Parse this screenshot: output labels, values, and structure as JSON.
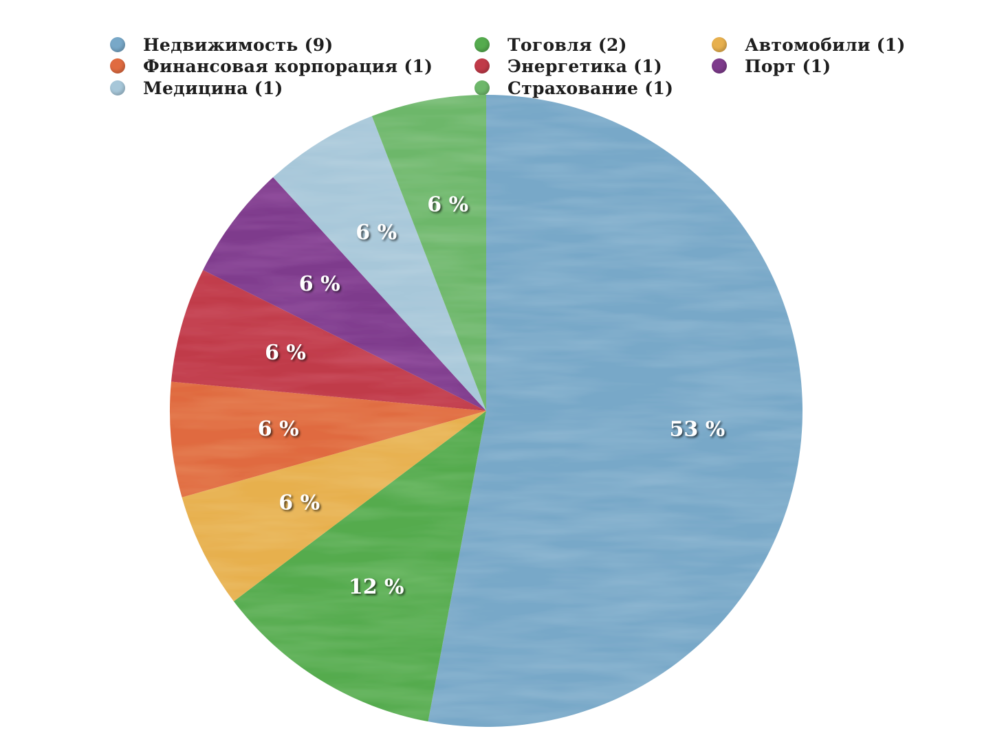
{
  "chart_data": {
    "type": "pie",
    "title": "",
    "start": "top",
    "direction": "clockwise",
    "legend_position": "top",
    "slices": [
      {
        "label": "Недвижимость (9)",
        "value": 9,
        "percent_label": "53 %",
        "color": "#78a8c8"
      },
      {
        "label": "Тоговля (2)",
        "value": 2,
        "percent_label": "12 %",
        "color": "#55ab4e"
      },
      {
        "label": "Автомобили (1)",
        "value": 1,
        "percent_label": "6 %",
        "color": "#e7b04e"
      },
      {
        "label": "Финансовая корпорация (1)",
        "value": 1,
        "percent_label": "6 %",
        "color": "#e06b40"
      },
      {
        "label": "Энергетика (1)",
        "value": 1,
        "percent_label": "6 %",
        "color": "#c03a48"
      },
      {
        "label": "Порт (1)",
        "value": 1,
        "percent_label": "6 %",
        "color": "#7e3b8c"
      },
      {
        "label": "Медицина (1)",
        "value": 1,
        "percent_label": "6 %",
        "color": "#a7c7d9"
      },
      {
        "label": "Страхование (1)",
        "value": 1,
        "percent_label": "6 %",
        "color": "#6db76a"
      }
    ]
  }
}
